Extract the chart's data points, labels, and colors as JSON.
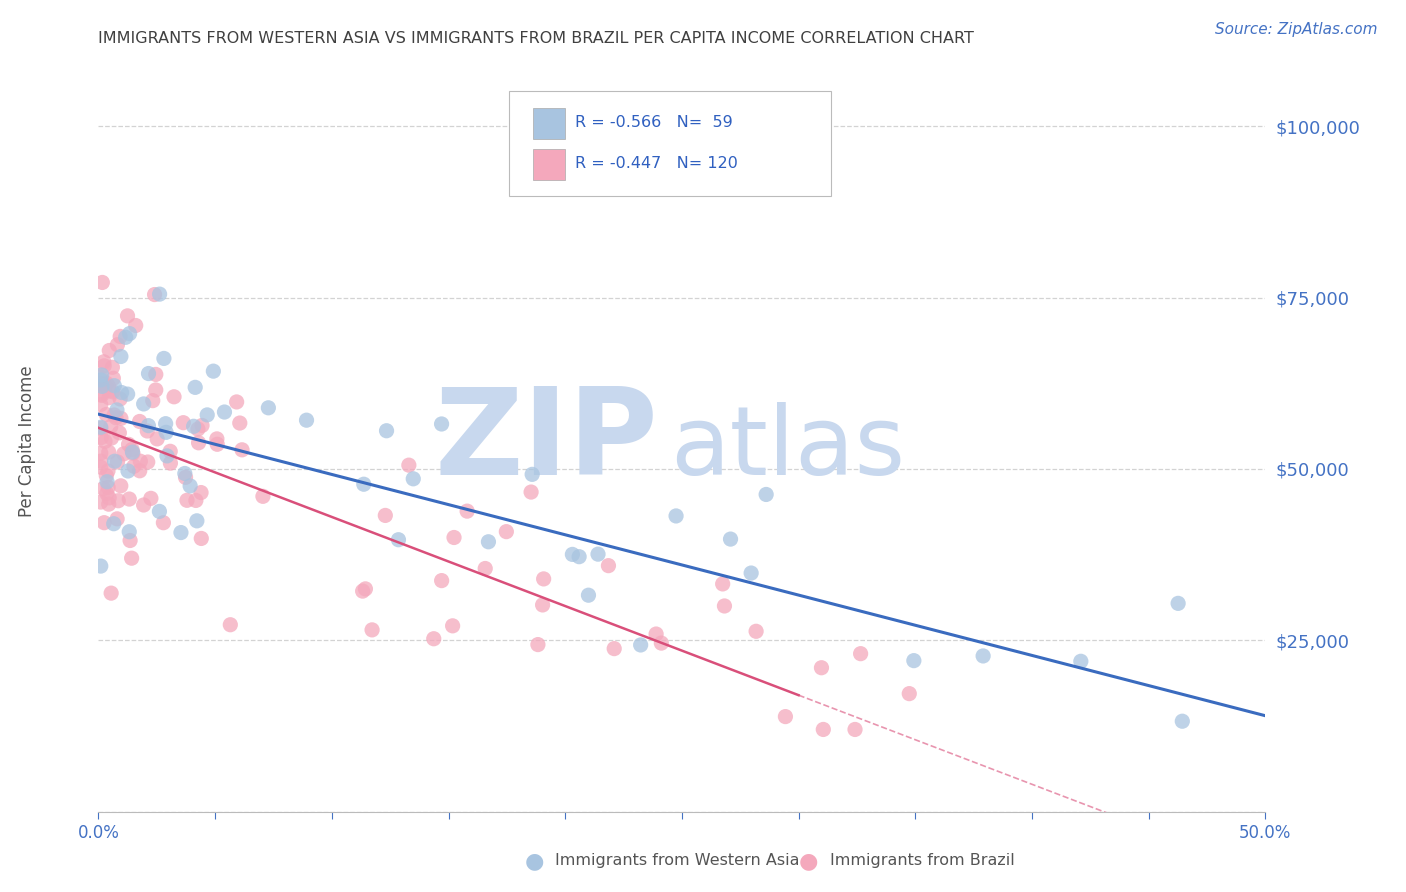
{
  "title": "IMMIGRANTS FROM WESTERN ASIA VS IMMIGRANTS FROM BRAZIL PER CAPITA INCOME CORRELATION CHART",
  "source": "Source: ZipAtlas.com",
  "ylabel": "Per Capita Income",
  "series1_label": "Immigrants from Western Asia",
  "series1_R": "-0.566",
  "series1_N": "59",
  "series1_color": "#a8c4e0",
  "series1_line_color": "#3a6bbf",
  "series2_label": "Immigrants from Brazil",
  "series2_R": "-0.447",
  "series2_N": "120",
  "series2_color": "#f4a8bc",
  "series2_line_color": "#d94f7a",
  "background_color": "#ffffff",
  "grid_color": "#c8c8c8",
  "title_color": "#404040",
  "axis_label_color": "#4472c4",
  "watermark_ZIP": "ZIP",
  "watermark_atlas": "atlas",
  "watermark_color": "#c8d8ee",
  "legend_text_color": "#3060c0"
}
